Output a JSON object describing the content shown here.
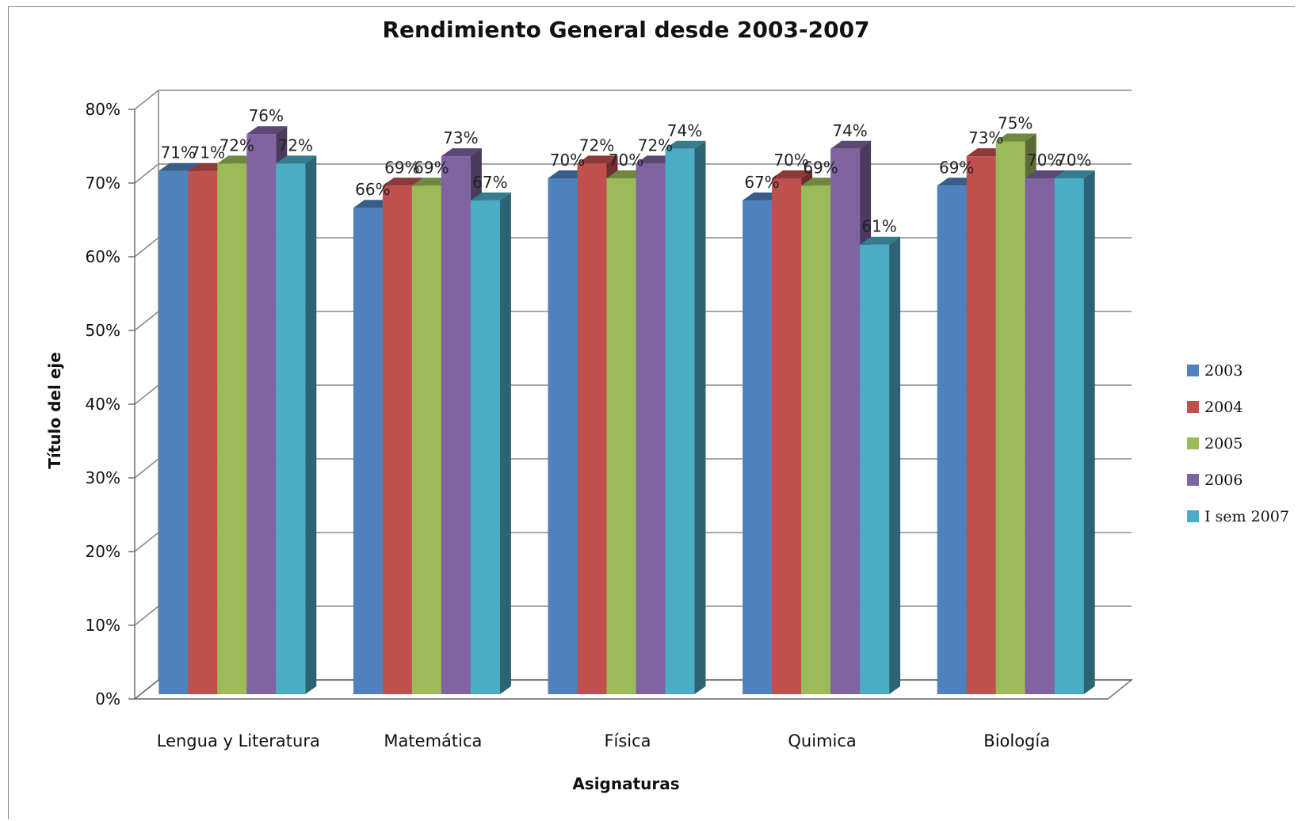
{
  "chart_data": {
    "type": "bar",
    "title": "Rendimiento General  desde 2003-2007",
    "xlabel": "Asignaturas",
    "ylabel": "Título del eje",
    "categories": [
      "Lengua y Literatura",
      "Matemática",
      "Física",
      "Quimica",
      "Biología"
    ],
    "series": [
      {
        "name": "2003",
        "color": "#4F81BD",
        "values": [
          71,
          66,
          70,
          67,
          69
        ],
        "labels": [
          "71%",
          "66%",
          "70%",
          "67%",
          "69%"
        ]
      },
      {
        "name": "2004",
        "color": "#C0504D",
        "values": [
          71,
          69,
          72,
          70,
          73
        ],
        "labels": [
          "71%",
          "69%",
          "72%",
          "70%",
          "73%"
        ]
      },
      {
        "name": "2005",
        "color": "#9BBB59",
        "values": [
          72,
          69,
          70,
          69,
          75
        ],
        "labels": [
          "72%",
          "69%",
          "70%",
          "69%",
          "75%"
        ]
      },
      {
        "name": "2006",
        "color": "#8064A2",
        "values": [
          76,
          73,
          72,
          74,
          70
        ],
        "labels": [
          "76%",
          "73%",
          "72%",
          "74%",
          "70%"
        ]
      },
      {
        "name": "I sem 2007",
        "color": "#4BACC6",
        "values": [
          72,
          67,
          74,
          61,
          70
        ],
        "labels": [
          "72%",
          "67%",
          "74%",
          "61%",
          "70%"
        ]
      }
    ],
    "y_ticks": [
      "0%",
      "10%",
      "20%",
      "30%",
      "40%",
      "50%",
      "60%",
      "70%",
      "80%"
    ],
    "ylim": [
      0,
      80
    ],
    "grid": true,
    "legend_position": "right",
    "style": "3d-clustered-column"
  }
}
